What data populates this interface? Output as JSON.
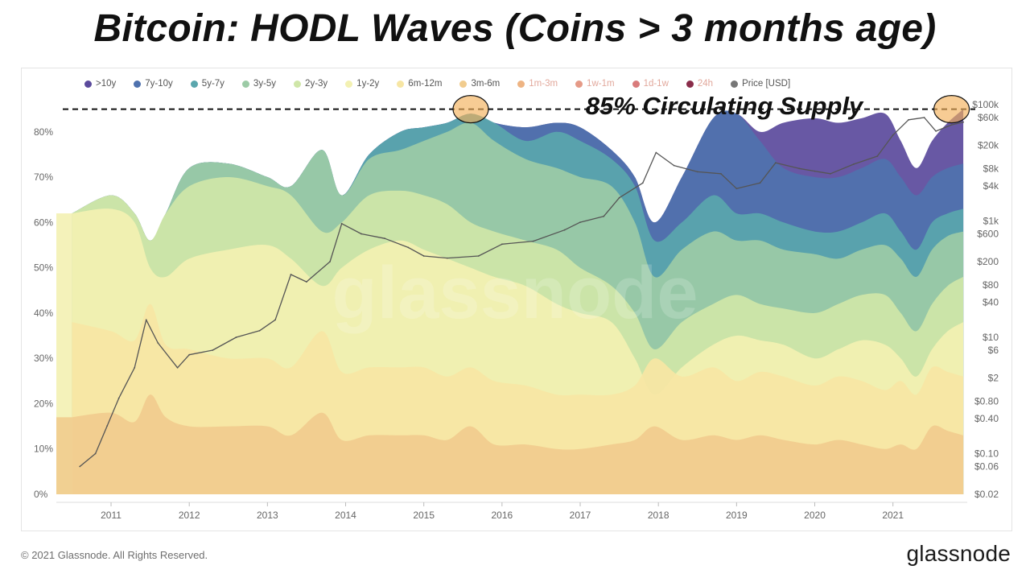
{
  "title": "Bitcoin: HODL Waves (Coins > 3 months age)",
  "footer": {
    "copyright": "© 2021 Glassnode. All Rights Reserved.",
    "logo": "glassnode"
  },
  "watermark": "glassnode",
  "legend": [
    {
      "label": ">10y",
      "color": "#5b4a9c",
      "faded": false
    },
    {
      "label": "7y-10y",
      "color": "#4f72ae",
      "faded": false
    },
    {
      "label": "5y-7y",
      "color": "#5aa6ad",
      "faded": false
    },
    {
      "label": "3y-5y",
      "color": "#9ccba6",
      "faded": false
    },
    {
      "label": "2y-3y",
      "color": "#cfe6a8",
      "faded": false
    },
    {
      "label": "1y-2y",
      "color": "#f3f1b2",
      "faded": false
    },
    {
      "label": "6m-12m",
      "color": "#f7e6a4",
      "faded": false
    },
    {
      "label": "3m-6m",
      "color": "#f1cc8e",
      "faded": false
    },
    {
      "label": "1m-3m",
      "color": "#eeb483",
      "faded": true
    },
    {
      "label": "1w-1m",
      "color": "#e59a87",
      "faded": true
    },
    {
      "label": "1d-1w",
      "color": "#d97b7b",
      "faded": true
    },
    {
      "label": "24h",
      "color": "#8a2d4a",
      "faded": true
    },
    {
      "label": "Price [USD]",
      "color": "#777777",
      "faded": false
    }
  ],
  "annotation": {
    "text": "85% Circulating Supply",
    "level_pct": 85,
    "highlight_dates": [
      2015.6,
      2021.75
    ]
  },
  "chart_data": {
    "type": "area",
    "title": "Bitcoin: HODL Waves (Coins > 3 months age)",
    "x_ticks": [
      "2011",
      "2012",
      "2013",
      "2014",
      "2015",
      "2016",
      "2017",
      "2018",
      "2019",
      "2020",
      "2021"
    ],
    "xlim": [
      2010.3,
      2021.95
    ],
    "y_left": {
      "ticks": [
        "0%",
        "10%",
        "20%",
        "30%",
        "40%",
        "50%",
        "60%",
        "70%",
        "80%"
      ],
      "ylim": [
        0,
        86
      ]
    },
    "y_right": {
      "label": "Price [USD]",
      "scale": "log",
      "ticks": [
        "$0.02",
        "$0.06",
        "$0.10",
        "$0.40",
        "$0.80",
        "$2",
        "$6",
        "$10",
        "$40",
        "$80",
        "$200",
        "$600",
        "$1k",
        "$4k",
        "$8k",
        "$20k",
        "$60k",
        "$100k"
      ],
      "tick_values": [
        0.02,
        0.06,
        0.1,
        0.4,
        0.8,
        2,
        6,
        10,
        40,
        80,
        200,
        600,
        1000,
        4000,
        8000,
        20000,
        60000,
        100000
      ],
      "range": [
        0.02,
        100000
      ]
    },
    "x": [
      2010.5,
      2011.0,
      2011.3,
      2011.5,
      2011.7,
      2012.0,
      2012.5,
      2013.0,
      2013.3,
      2013.7,
      2013.95,
      2014.3,
      2014.7,
      2015.0,
      2015.3,
      2015.6,
      2015.9,
      2016.3,
      2016.7,
      2017.0,
      2017.4,
      2017.7,
      2017.95,
      2018.3,
      2018.7,
      2019.0,
      2019.3,
      2019.6,
      2020.0,
      2020.3,
      2020.6,
      2020.9,
      2021.1,
      2021.3,
      2021.5,
      2021.7,
      2021.9
    ],
    "cumulative_series_note": "values are cumulative supply % at top edge of each band",
    "series": [
      {
        "name": "3m-6m",
        "values": [
          17,
          18,
          16,
          22,
          17,
          15,
          15,
          15,
          13,
          18,
          12,
          13,
          13,
          13,
          12,
          15,
          11,
          11,
          10,
          10,
          11,
          12,
          15,
          12,
          13,
          12,
          13,
          12,
          11,
          12,
          11,
          10,
          11,
          10,
          15,
          14,
          13
        ]
      },
      {
        "name": "6m-12m",
        "values": [
          38,
          36,
          34,
          42,
          33,
          32,
          30,
          30,
          28,
          36,
          27,
          28,
          28,
          28,
          26,
          28,
          25,
          24,
          22,
          22,
          22,
          24,
          30,
          26,
          28,
          25,
          27,
          26,
          24,
          26,
          25,
          23,
          25,
          22,
          28,
          27,
          26
        ]
      },
      {
        "name": "1y-2y",
        "values": [
          62,
          63,
          60,
          50,
          48,
          52,
          54,
          55,
          52,
          46,
          50,
          54,
          56,
          54,
          52,
          50,
          48,
          46,
          42,
          40,
          38,
          30,
          22,
          28,
          33,
          35,
          34,
          33,
          30,
          32,
          34,
          33,
          30,
          26,
          32,
          36,
          38
        ]
      },
      {
        "name": "2y-3y",
        "values": [
          62,
          66,
          62,
          56,
          62,
          68,
          70,
          68,
          66,
          58,
          60,
          66,
          67,
          66,
          64,
          60,
          58,
          56,
          54,
          50,
          46,
          40,
          32,
          38,
          42,
          44,
          42,
          41,
          40,
          42,
          44,
          44,
          40,
          36,
          42,
          46,
          48
        ]
      },
      {
        "name": "3y-5y",
        "values": [
          62,
          66,
          62,
          56,
          62,
          72,
          73,
          70,
          68,
          76,
          66,
          74,
          76,
          78,
          80,
          82,
          78,
          74,
          72,
          70,
          68,
          60,
          48,
          54,
          58,
          56,
          56,
          54,
          53,
          52,
          54,
          55,
          52,
          48,
          54,
          57,
          58
        ]
      },
      {
        "name": "5y-7y",
        "values": [
          62,
          66,
          62,
          56,
          62,
          72,
          73,
          70,
          68,
          76,
          66,
          75,
          80,
          81,
          82,
          84,
          82,
          78,
          80,
          78,
          74,
          68,
          56,
          60,
          66,
          62,
          62,
          60,
          58,
          58,
          60,
          62,
          58,
          54,
          60,
          62,
          63
        ]
      },
      {
        "name": "7y-10y",
        "values": [
          62,
          66,
          62,
          56,
          62,
          72,
          73,
          70,
          68,
          76,
          66,
          75,
          80,
          81,
          82,
          84,
          82,
          81,
          82,
          81,
          76,
          70,
          60,
          70,
          83,
          84,
          78,
          72,
          70,
          70,
          72,
          74,
          70,
          66,
          70,
          72,
          73
        ]
      },
      {
        "name": ">10y",
        "values": [
          62,
          66,
          62,
          56,
          62,
          72,
          73,
          70,
          68,
          76,
          66,
          75,
          80,
          81,
          82,
          84,
          82,
          81,
          82,
          81,
          76,
          70,
          60,
          70,
          83,
          84,
          80,
          82,
          83,
          82,
          83,
          84,
          78,
          72,
          78,
          82,
          85
        ]
      }
    ],
    "price_series": {
      "name": "Price [USD]",
      "x": [
        2010.6,
        2010.8,
        2010.95,
        2011.1,
        2011.3,
        2011.45,
        2011.6,
        2011.85,
        2012.0,
        2012.3,
        2012.6,
        2012.9,
        2013.1,
        2013.3,
        2013.5,
        2013.8,
        2013.95,
        2014.2,
        2014.5,
        2014.8,
        2015.0,
        2015.3,
        2015.7,
        2016.0,
        2016.4,
        2016.8,
        2017.0,
        2017.3,
        2017.5,
        2017.8,
        2017.97,
        2018.2,
        2018.5,
        2018.8,
        2019.0,
        2019.3,
        2019.5,
        2019.8,
        2020.0,
        2020.2,
        2020.5,
        2020.8,
        2021.0,
        2021.2,
        2021.4,
        2021.55,
        2021.75,
        2021.9
      ],
      "values": [
        0.06,
        0.1,
        0.3,
        0.9,
        3,
        20,
        8,
        3,
        5,
        6,
        10,
        13,
        20,
        120,
        90,
        200,
        900,
        600,
        500,
        350,
        250,
        230,
        250,
        400,
        450,
        700,
        950,
        1200,
        2500,
        4500,
        15000,
        9000,
        7000,
        6500,
        3600,
        4500,
        10000,
        8000,
        7200,
        6500,
        9500,
        13000,
        30000,
        55000,
        60000,
        35000,
        45000,
        50000
      ]
    }
  }
}
